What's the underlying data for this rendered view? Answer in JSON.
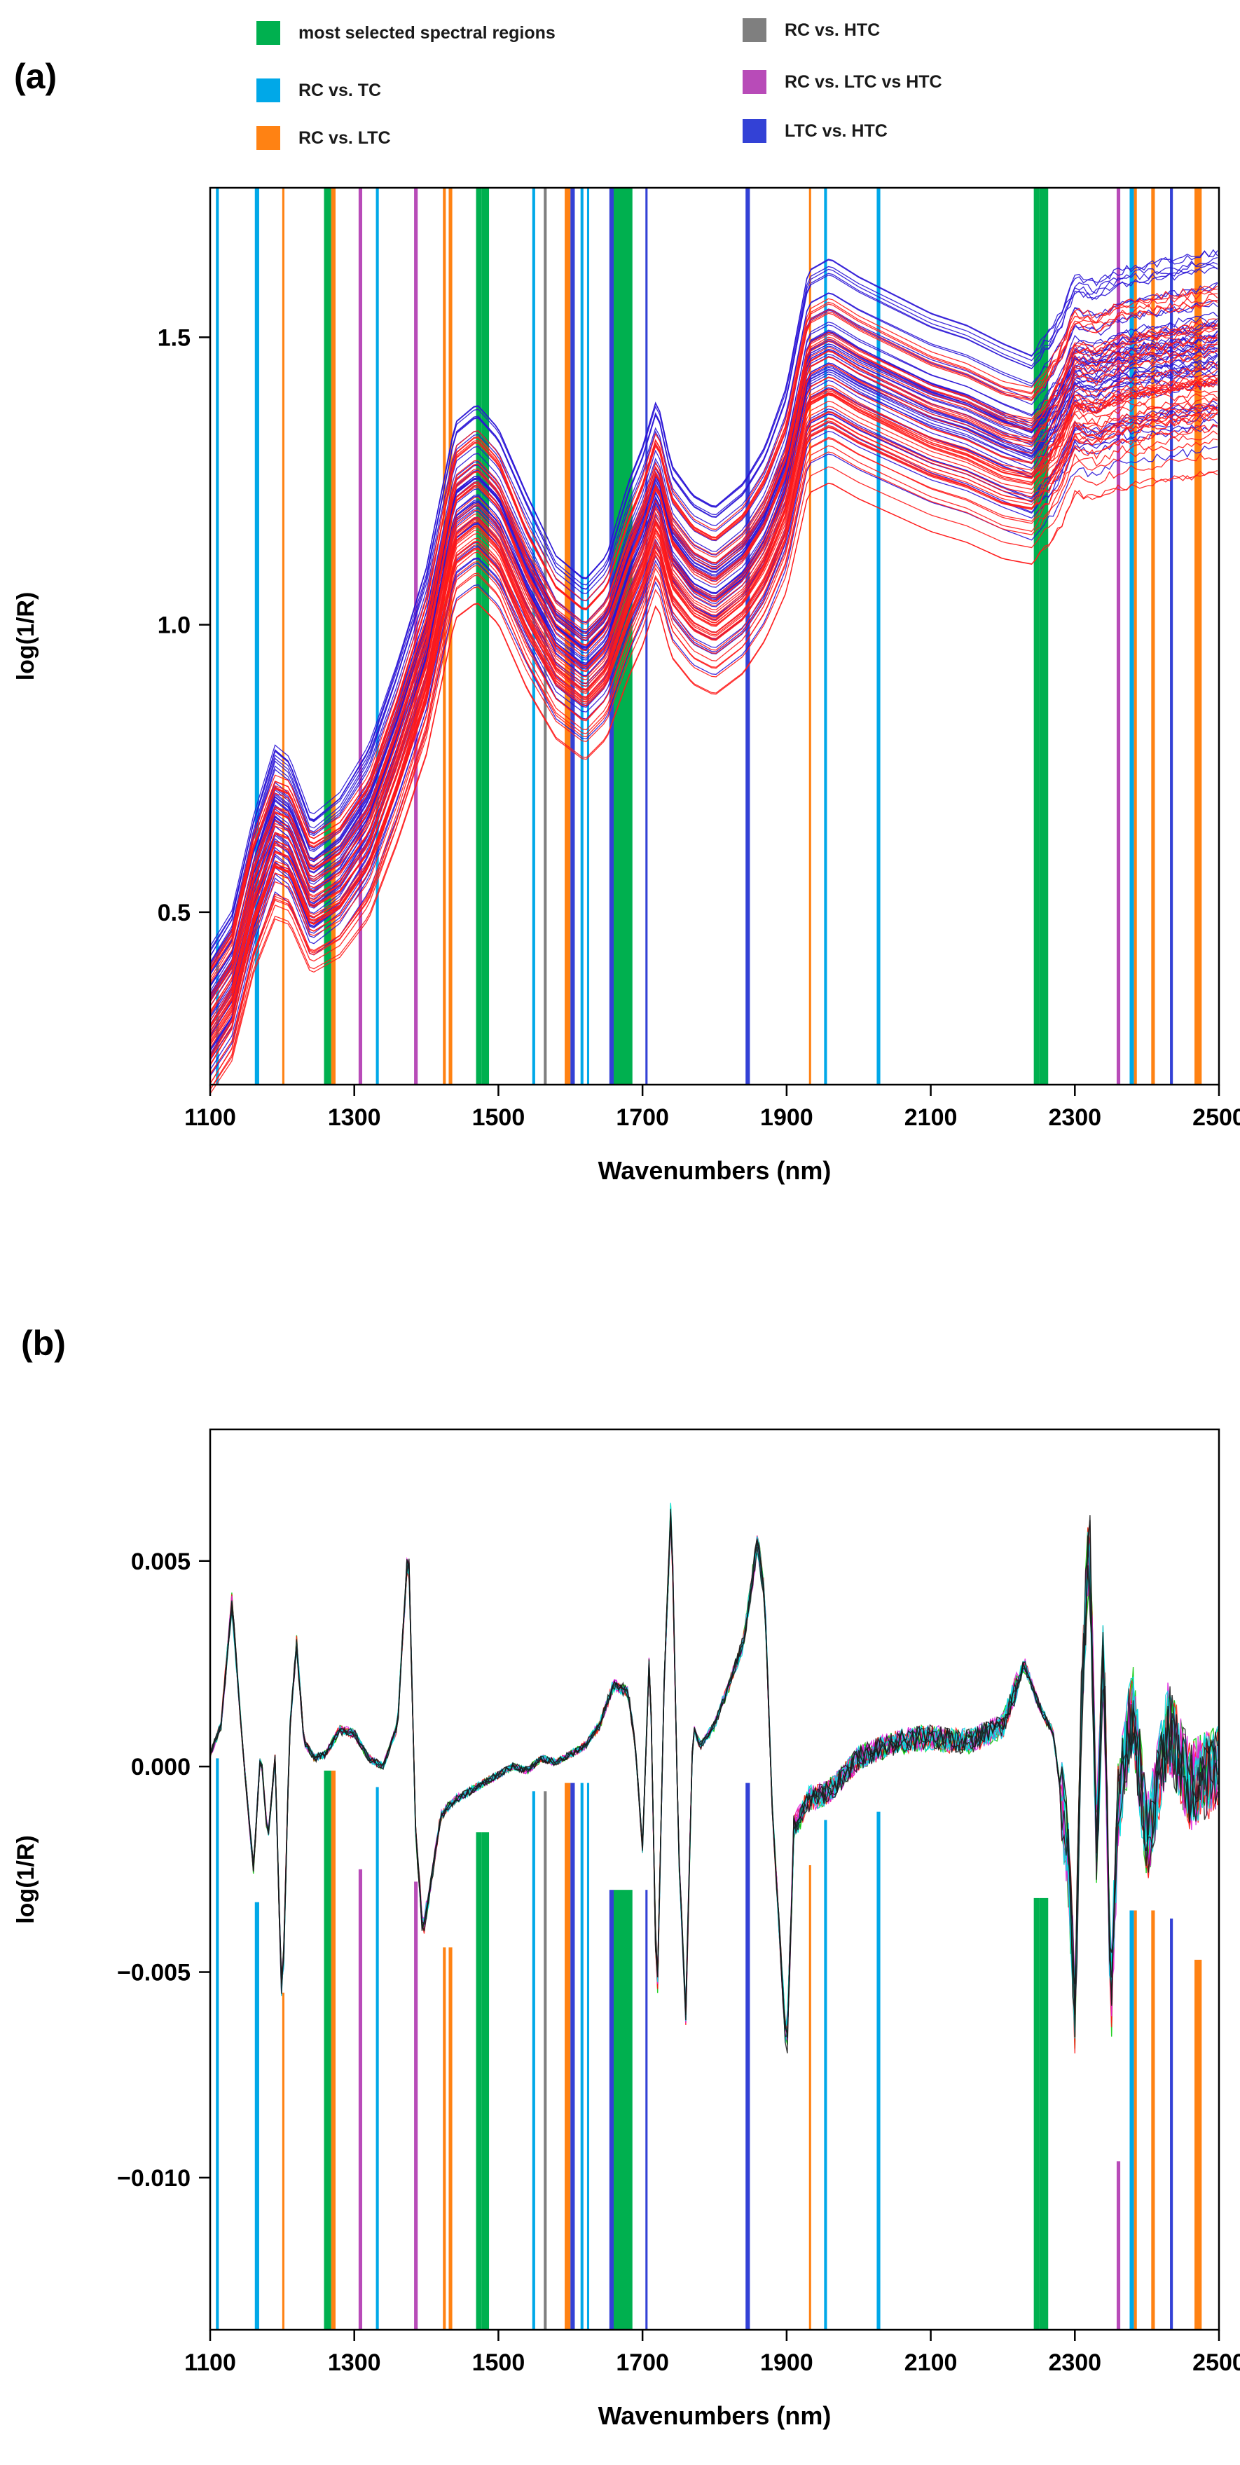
{
  "panel_a_label": "(a)",
  "panel_b_label": "(b)",
  "legend": [
    {
      "label": "most selected spectral regions",
      "color": "#00b04f"
    },
    {
      "label": "RC vs. TC",
      "color": "#00a8e8"
    },
    {
      "label": "RC vs. LTC",
      "color": "#ff8213"
    },
    {
      "label": "RC vs. HTC",
      "color": "#7f7f7f"
    },
    {
      "label": "RC vs. LTC vs HTC",
      "color": "#b84bb8"
    },
    {
      "label": "LTC vs. HTC",
      "color": "#3341d6"
    }
  ],
  "chart_data": [
    {
      "type": "line",
      "panel": "(a)",
      "title": "",
      "xlabel": "Wavenumbers (nm)",
      "ylabel": "log(1/R)",
      "xlim": [
        1100,
        2500
      ],
      "ylim": [
        0.2,
        1.76
      ],
      "xticks": [
        "1100",
        "1300",
        "1500",
        "1700",
        "1900",
        "2100",
        "2300",
        "2500"
      ],
      "yticks": [
        "0.5",
        "1.0",
        "1.5"
      ],
      "ytick_values": [
        0.5,
        1.0,
        1.5
      ],
      "series_colors": [
        "#2a14d6",
        "#ff1a1a"
      ],
      "series_counts": [
        48,
        48
      ],
      "series": [
        {
          "name": "spectra (blue)",
          "x": [
            1100,
            1130,
            1160,
            1190,
            1210,
            1240,
            1280,
            1320,
            1360,
            1400,
            1440,
            1470,
            1500,
            1540,
            1580,
            1620,
            1650,
            1680,
            1700,
            1720,
            1740,
            1770,
            1800,
            1840,
            1870,
            1900,
            1930,
            1960,
            2000,
            2050,
            2100,
            2150,
            2200,
            2240,
            2260,
            2280,
            2300,
            2330,
            2360,
            2400,
            2450,
            2500
          ],
          "values": [
            0.34,
            0.4,
            0.56,
            0.68,
            0.66,
            0.56,
            0.6,
            0.68,
            0.82,
            0.98,
            1.22,
            1.25,
            1.21,
            1.1,
            1.0,
            0.96,
            1.0,
            1.12,
            1.18,
            1.26,
            1.15,
            1.1,
            1.08,
            1.12,
            1.18,
            1.28,
            1.47,
            1.49,
            1.46,
            1.43,
            1.4,
            1.38,
            1.35,
            1.33,
            1.36,
            1.4,
            1.46,
            1.45,
            1.47,
            1.48,
            1.49,
            1.5
          ]
        },
        {
          "name": "spectra (red)",
          "x": [
            1100,
            1130,
            1160,
            1190,
            1210,
            1240,
            1280,
            1320,
            1360,
            1400,
            1440,
            1470,
            1500,
            1540,
            1580,
            1620,
            1650,
            1680,
            1700,
            1720,
            1740,
            1770,
            1800,
            1840,
            1870,
            1900,
            1930,
            1960,
            2000,
            2050,
            2100,
            2150,
            2200,
            2240,
            2260,
            2280,
            2300,
            2330,
            2360,
            2400,
            2450,
            2500
          ],
          "values": [
            0.3,
            0.36,
            0.52,
            0.62,
            0.61,
            0.52,
            0.55,
            0.62,
            0.76,
            0.92,
            1.17,
            1.2,
            1.16,
            1.04,
            0.95,
            0.91,
            0.95,
            1.06,
            1.12,
            1.2,
            1.1,
            1.05,
            1.03,
            1.07,
            1.13,
            1.22,
            1.4,
            1.42,
            1.39,
            1.36,
            1.33,
            1.31,
            1.28,
            1.27,
            1.3,
            1.34,
            1.4,
            1.39,
            1.41,
            1.42,
            1.43,
            1.44
          ]
        }
      ],
      "highlight_bands": [
        {
          "x": 1108,
          "w": 4,
          "group": "RC vs. TC"
        },
        {
          "x": 1162,
          "w": 6,
          "group": "RC vs. TC"
        },
        {
          "x": 1200,
          "w": 3,
          "group": "RC vs. LTC"
        },
        {
          "x": 1258,
          "w": 10,
          "group": "most selected spectral regions"
        },
        {
          "x": 1268,
          "w": 6,
          "group": "RC vs. LTC"
        },
        {
          "x": 1306,
          "w": 5,
          "group": "RC vs. LTC vs HTC"
        },
        {
          "x": 1330,
          "w": 4,
          "group": "RC vs. TC"
        },
        {
          "x": 1383,
          "w": 5,
          "group": "RC vs. LTC vs HTC"
        },
        {
          "x": 1423,
          "w": 4,
          "group": "RC vs. LTC"
        },
        {
          "x": 1431,
          "w": 5,
          "group": "RC vs. LTC"
        },
        {
          "x": 1469,
          "w": 8,
          "group": "most selected spectral regions"
        },
        {
          "x": 1477,
          "w": 10,
          "group": "most selected spectral regions"
        },
        {
          "x": 1547,
          "w": 4,
          "group": "RC vs. TC"
        },
        {
          "x": 1563,
          "w": 4,
          "group": "RC vs. HTC"
        },
        {
          "x": 1592,
          "w": 8,
          "group": "RC vs. LTC"
        },
        {
          "x": 1600,
          "w": 6,
          "group": "LTC vs. HTC"
        },
        {
          "x": 1614,
          "w": 4,
          "group": "RC vs. TC"
        },
        {
          "x": 1623,
          "w": 3,
          "group": "RC vs. TC"
        },
        {
          "x": 1654,
          "w": 6,
          "group": "LTC vs. HTC"
        },
        {
          "x": 1660,
          "w": 26,
          "group": "most selected spectral regions"
        },
        {
          "x": 1704,
          "w": 3,
          "group": "LTC vs. HTC"
        },
        {
          "x": 1843,
          "w": 6,
          "group": "LTC vs. HTC"
        },
        {
          "x": 1931,
          "w": 3,
          "group": "RC vs. LTC"
        },
        {
          "x": 1952,
          "w": 4,
          "group": "RC vs. TC"
        },
        {
          "x": 2025,
          "w": 5,
          "group": "RC vs. TC"
        },
        {
          "x": 2243,
          "w": 8,
          "group": "most selected spectral regions"
        },
        {
          "x": 2251,
          "w": 12,
          "group": "most selected spectral regions"
        },
        {
          "x": 2358,
          "w": 5,
          "group": "RC vs. LTC vs HTC"
        },
        {
          "x": 2376,
          "w": 6,
          "group": "RC vs. TC"
        },
        {
          "x": 2382,
          "w": 4,
          "group": "RC vs. LTC"
        },
        {
          "x": 2406,
          "w": 5,
          "group": "RC vs. LTC"
        },
        {
          "x": 2432,
          "w": 4,
          "group": "LTC vs. HTC"
        },
        {
          "x": 2466,
          "w": 10,
          "group": "RC vs. LTC"
        }
      ]
    },
    {
      "type": "line",
      "panel": "(b)",
      "title": "",
      "xlabel": "Wavenumbers (nm)",
      "ylabel": "log(1/R)",
      "xlim": [
        1100,
        2500
      ],
      "ylim": [
        -0.0137,
        0.0082
      ],
      "xticks": [
        "1100",
        "1300",
        "1500",
        "1700",
        "1900",
        "2100",
        "2300",
        "2500"
      ],
      "yticks": [
        "0.005",
        "0.000",
        "−0.005",
        "−0.010"
      ],
      "ytick_values": [
        0.005,
        0.0,
        -0.005,
        -0.01
      ],
      "series_colors": [
        "#00c800",
        "#ff1a1a",
        "#e020e0",
        "#00e0e0",
        "#1a1a1a"
      ],
      "series": [
        {
          "name": "derivative spectra",
          "x": [
            1100,
            1115,
            1130,
            1145,
            1160,
            1170,
            1180,
            1190,
            1200,
            1210,
            1220,
            1230,
            1245,
            1260,
            1280,
            1300,
            1320,
            1340,
            1360,
            1375,
            1385,
            1395,
            1405,
            1420,
            1440,
            1460,
            1480,
            1500,
            1520,
            1540,
            1560,
            1580,
            1600,
            1620,
            1640,
            1660,
            1680,
            1690,
            1700,
            1710,
            1720,
            1730,
            1740,
            1750,
            1760,
            1770,
            1780,
            1800,
            1820,
            1840,
            1860,
            1870,
            1880,
            1890,
            1900,
            1910,
            1930,
            1960,
            2000,
            2050,
            2100,
            2150,
            2200,
            2230,
            2250,
            2270,
            2290,
            2300,
            2310,
            2320,
            2330,
            2340,
            2350,
            2360,
            2380,
            2400,
            2430,
            2460,
            2500
          ],
          "values": [
            0.0003,
            0.001,
            0.004,
            0.0005,
            -0.0025,
            0.0004,
            -0.0018,
            0.0002,
            -0.006,
            0.0008,
            0.003,
            0.0006,
            0.0002,
            0.0003,
            0.0009,
            0.0008,
            0.0002,
            0.0,
            0.001,
            0.0055,
            -0.0015,
            -0.004,
            -0.003,
            -0.0012,
            -0.0008,
            -0.0006,
            -0.0004,
            -0.0002,
            0.0,
            -0.0001,
            0.0002,
            0.0001,
            0.0003,
            0.0005,
            0.001,
            0.002,
            0.0018,
            0.0005,
            -0.002,
            0.003,
            -0.006,
            0.002,
            0.0065,
            -0.002,
            -0.006,
            0.001,
            0.0005,
            0.001,
            0.002,
            0.003,
            0.0055,
            0.004,
            -0.001,
            -0.004,
            -0.007,
            -0.0015,
            -0.0008,
            -0.0006,
            0.0002,
            0.0006,
            0.0007,
            0.0006,
            0.001,
            0.0025,
            0.0015,
            0.0008,
            -0.002,
            -0.006,
            0.002,
            0.0058,
            -0.002,
            0.003,
            -0.006,
            -0.001,
            0.0015,
            -0.0018,
            0.001,
            -0.0005,
            0.0
          ]
        }
      ],
      "highlight_bands": [
        {
          "x": 1108,
          "w": 4,
          "group": "RC vs. TC",
          "y_top": 0.0002
        },
        {
          "x": 1162,
          "w": 6,
          "group": "RC vs. TC",
          "y_top": -0.0033
        },
        {
          "x": 1200,
          "w": 3,
          "group": "RC vs. LTC",
          "y_top": -0.0055
        },
        {
          "x": 1258,
          "w": 10,
          "group": "most selected spectral regions",
          "y_top": -0.0001
        },
        {
          "x": 1268,
          "w": 6,
          "group": "RC vs. LTC",
          "y_top": -0.0001
        },
        {
          "x": 1306,
          "w": 5,
          "group": "RC vs. LTC vs HTC",
          "y_top": -0.0025
        },
        {
          "x": 1330,
          "w": 4,
          "group": "RC vs. TC",
          "y_top": -0.0005
        },
        {
          "x": 1383,
          "w": 5,
          "group": "RC vs. LTC vs HTC",
          "y_top": -0.0028
        },
        {
          "x": 1423,
          "w": 4,
          "group": "RC vs. LTC",
          "y_top": -0.0044
        },
        {
          "x": 1431,
          "w": 5,
          "group": "RC vs. LTC",
          "y_top": -0.0044
        },
        {
          "x": 1469,
          "w": 8,
          "group": "most selected spectral regions",
          "y_top": -0.0016
        },
        {
          "x": 1477,
          "w": 10,
          "group": "most selected spectral regions",
          "y_top": -0.0016
        },
        {
          "x": 1547,
          "w": 4,
          "group": "RC vs. TC",
          "y_top": -0.0006
        },
        {
          "x": 1563,
          "w": 4,
          "group": "RC vs. HTC",
          "y_top": -0.0006
        },
        {
          "x": 1592,
          "w": 8,
          "group": "RC vs. LTC",
          "y_top": -0.0004
        },
        {
          "x": 1600,
          "w": 6,
          "group": "LTC vs. HTC",
          "y_top": -0.0004
        },
        {
          "x": 1614,
          "w": 4,
          "group": "RC vs. TC",
          "y_top": -0.0004
        },
        {
          "x": 1623,
          "w": 3,
          "group": "RC vs. TC",
          "y_top": -0.0004
        },
        {
          "x": 1654,
          "w": 6,
          "group": "LTC vs. HTC",
          "y_top": -0.003
        },
        {
          "x": 1660,
          "w": 26,
          "group": "most selected spectral regions",
          "y_top": -0.003
        },
        {
          "x": 1704,
          "w": 3,
          "group": "LTC vs. HTC",
          "y_top": -0.003
        },
        {
          "x": 1843,
          "w": 6,
          "group": "LTC vs. HTC",
          "y_top": -0.0004
        },
        {
          "x": 1931,
          "w": 3,
          "group": "RC vs. LTC",
          "y_top": -0.0024
        },
        {
          "x": 1952,
          "w": 4,
          "group": "RC vs. TC",
          "y_top": -0.0013
        },
        {
          "x": 2025,
          "w": 5,
          "group": "RC vs. TC",
          "y_top": -0.0011
        },
        {
          "x": 2243,
          "w": 8,
          "group": "most selected spectral regions",
          "y_top": -0.0032
        },
        {
          "x": 2251,
          "w": 12,
          "group": "most selected spectral regions",
          "y_top": -0.0032
        },
        {
          "x": 2358,
          "w": 5,
          "group": "RC vs. LTC vs HTC",
          "y_top": -0.0096
        },
        {
          "x": 2376,
          "w": 6,
          "group": "RC vs. TC",
          "y_top": -0.0035
        },
        {
          "x": 2382,
          "w": 4,
          "group": "RC vs. LTC",
          "y_top": -0.0035
        },
        {
          "x": 2406,
          "w": 5,
          "group": "RC vs. LTC",
          "y_top": -0.0035
        },
        {
          "x": 2432,
          "w": 4,
          "group": "LTC vs. HTC",
          "y_top": -0.0037
        },
        {
          "x": 2466,
          "w": 10,
          "group": "RC vs. LTC",
          "y_top": -0.0047
        }
      ]
    }
  ]
}
